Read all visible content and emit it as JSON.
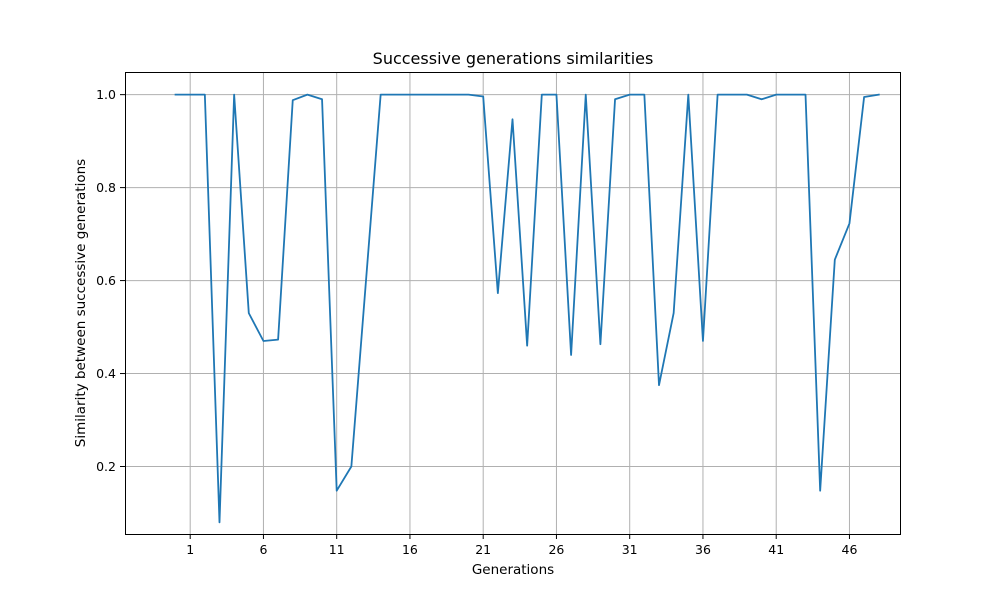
{
  "chart_data": {
    "type": "line",
    "title": "Successive generations similarities",
    "xlabel": "Generations",
    "ylabel": "Similarity between successive generations",
    "xlim": [
      -3.45,
      49.45
    ],
    "ylim": [
      0.0548,
      1.0487
    ],
    "xticks": [
      1,
      6,
      11,
      16,
      21,
      26,
      31,
      36,
      41,
      46
    ],
    "yticks": [
      0.2,
      0.4,
      0.6,
      0.8,
      1.0
    ],
    "ytick_labels": [
      "0.2",
      "0.4",
      "0.6",
      "0.8",
      "1.0"
    ],
    "grid": true,
    "color": "#1f77b4",
    "x": [
      0,
      1,
      2,
      3,
      4,
      5,
      6,
      7,
      8,
      9,
      10,
      11,
      12,
      13,
      14,
      15,
      16,
      17,
      18,
      19,
      20,
      21,
      22,
      23,
      24,
      25,
      26,
      27,
      28,
      29,
      30,
      31,
      32,
      33,
      34,
      35,
      36,
      37,
      38,
      39,
      40,
      41,
      42,
      43,
      44,
      45,
      46,
      47,
      48
    ],
    "values": [
      1.0,
      1.0,
      1.0,
      0.08,
      1.0,
      0.53,
      0.47,
      0.473,
      0.988,
      1.0,
      0.99,
      0.148,
      0.2,
      0.6,
      1.0,
      1.0,
      1.0,
      1.0,
      1.0,
      1.0,
      1.0,
      0.996,
      0.573,
      0.947,
      0.46,
      1.0,
      1.0,
      0.44,
      1.0,
      0.463,
      0.99,
      1.0,
      1.0,
      0.375,
      0.53,
      1.0,
      0.47,
      1.0,
      1.0,
      1.0,
      0.99,
      1.0,
      1.0,
      1.0,
      0.148,
      0.645,
      0.723,
      0.995,
      1.0
    ]
  }
}
